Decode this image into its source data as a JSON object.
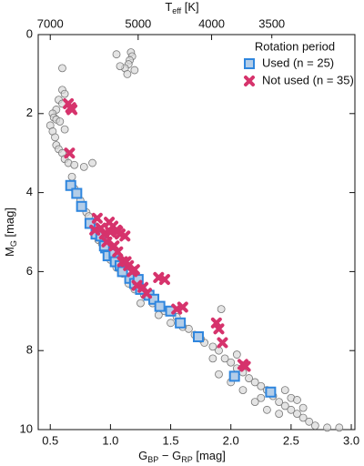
{
  "chart_data": {
    "type": "scatter",
    "xlabel": [
      "G",
      "BP",
      " − G",
      "RP",
      " [mag]"
    ],
    "ylabel": [
      "M",
      "G",
      " [mag]"
    ],
    "x2label": [
      "T",
      "eff",
      " [K]"
    ],
    "xlim": [
      0.4,
      3.03
    ],
    "ylim": [
      10,
      0
    ],
    "xticks": [
      0.5,
      {
        "value": 1,
        "label": "1.0"
      },
      1.5,
      {
        "value": 2,
        "label": "2.0"
      },
      2.5,
      {
        "value": 3,
        "label": "3.0"
      }
    ],
    "yticks": [
      0,
      2,
      4,
      6,
      8,
      10
    ],
    "x2ticks": [
      {
        "value": 0.5,
        "label": "7000"
      },
      {
        "value": 1.23,
        "label": "5000"
      },
      {
        "value": 1.84,
        "label": "4000"
      },
      {
        "value": 2.34,
        "label": "3500"
      }
    ],
    "legend_title": "Rotation period",
    "legend_position": "upper right",
    "background": {
      "color": "#777777",
      "fill": "#d9d9d9",
      "x": [
        0.6,
        0.6,
        0.62,
        0.57,
        0.55,
        0.52,
        0.53,
        0.55,
        0.5,
        0.52,
        0.54,
        0.55,
        0.57,
        0.6,
        0.62,
        0.65,
        0.7,
        0.78,
        0.85,
        0.62,
        0.58,
        0.6,
        1.17,
        1.18,
        1.16,
        1.15,
        1.12,
        1.2,
        1.05,
        1.14,
        1.08,
        0.68,
        0.7,
        0.75,
        0.8,
        0.82,
        0.87,
        0.9,
        0.93,
        0.97,
        1.0,
        1.05,
        1.1,
        1.15,
        1.2,
        1.28,
        1.35,
        1.45,
        1.55,
        1.65,
        1.7,
        1.78,
        1.85,
        1.9,
        1.95,
        2.0,
        2.05,
        2.1,
        2.15,
        2.2,
        2.25,
        2.3,
        2.35,
        2.4,
        2.45,
        2.5,
        2.55,
        2.6,
        2.65,
        2.7,
        2.8,
        2.9,
        2.2,
        2.3,
        2.4,
        2.25,
        2.1,
        2.0,
        2.5,
        2.6,
        1.85,
        1.9,
        1.75,
        1.6,
        1.4,
        1.25,
        1.92,
        1.5,
        2.05,
        2.45,
        2.55
      ],
      "values": [
        0.85,
        1.4,
        1.5,
        1.65,
        1.9,
        2.0,
        2.1,
        2.15,
        2.3,
        2.45,
        2.6,
        2.8,
        2.9,
        3.0,
        3.15,
        3.25,
        3.3,
        3.35,
        3.25,
        2.4,
        2.2,
        1.75,
        0.45,
        0.55,
        0.65,
        0.75,
        0.85,
        0.9,
        0.5,
        1.0,
        0.8,
        3.6,
        3.9,
        4.2,
        4.5,
        4.6,
        4.85,
        5.2,
        5.3,
        5.55,
        5.7,
        5.9,
        6.05,
        6.3,
        6.45,
        6.6,
        6.8,
        7.0,
        7.15,
        7.45,
        7.6,
        7.8,
        7.9,
        8.0,
        8.2,
        8.3,
        8.45,
        8.55,
        8.7,
        8.8,
        8.9,
        9.0,
        9.15,
        9.3,
        9.4,
        9.5,
        9.6,
        9.7,
        9.8,
        9.9,
        9.95,
        9.95,
        9.3,
        9.5,
        9.6,
        9.2,
        9.0,
        8.8,
        9.2,
        9.45,
        8.2,
        8.6,
        7.7,
        7.4,
        7.1,
        6.8,
        6.95,
        7.3,
        8.1,
        9.0,
        9.25
      ]
    },
    "series": [
      {
        "name": "Used (n = 25)",
        "marker": "square",
        "color": "#2f86de",
        "fill": "#b3cde8",
        "x": [
          0.67,
          0.72,
          0.76,
          0.83,
          0.88,
          0.92,
          0.96,
          0.98,
          1.03,
          1.04,
          1.08,
          1.16,
          1.2,
          1.23,
          1.25,
          1.32,
          1.36,
          1.41,
          1.5,
          1.58,
          1.73,
          2.03,
          2.33,
          0.95,
          1.1
        ],
        "values": [
          3.82,
          4.02,
          4.35,
          4.78,
          5.05,
          5.1,
          5.4,
          5.6,
          5.55,
          5.75,
          5.85,
          6.17,
          6.3,
          6.2,
          6.45,
          6.6,
          6.7,
          6.88,
          7.0,
          7.3,
          7.65,
          8.65,
          9.05,
          5.35,
          6.0
        ]
      },
      {
        "name": "Not used (n = 35)",
        "marker": "cross",
        "color": "#d6336c",
        "fill": "#f3b6c9",
        "x": [
          0.65,
          0.67,
          0.68,
          0.66,
          0.89,
          0.87,
          0.99,
          1.02,
          1.0,
          1.06,
          1.08,
          1.12,
          0.97,
          1.03,
          1.06,
          1.1,
          1.13,
          1.15,
          1.2,
          1.4,
          1.45,
          1.22,
          1.27,
          1.3,
          1.55,
          1.88,
          1.9,
          1.93,
          2.1,
          2.12,
          1.6,
          1.05,
          0.95,
          0.92,
          1.18
        ],
        "values": [
          1.75,
          1.85,
          1.9,
          3.0,
          4.65,
          4.95,
          4.75,
          4.85,
          5.0,
          4.98,
          5.05,
          5.1,
          5.25,
          5.35,
          5.5,
          5.75,
          5.75,
          5.85,
          5.95,
          6.15,
          6.2,
          6.35,
          6.4,
          6.55,
          6.95,
          7.3,
          7.45,
          7.8,
          8.35,
          8.4,
          6.9,
          4.95,
          5.05,
          4.9,
          6.0
        ]
      }
    ]
  }
}
